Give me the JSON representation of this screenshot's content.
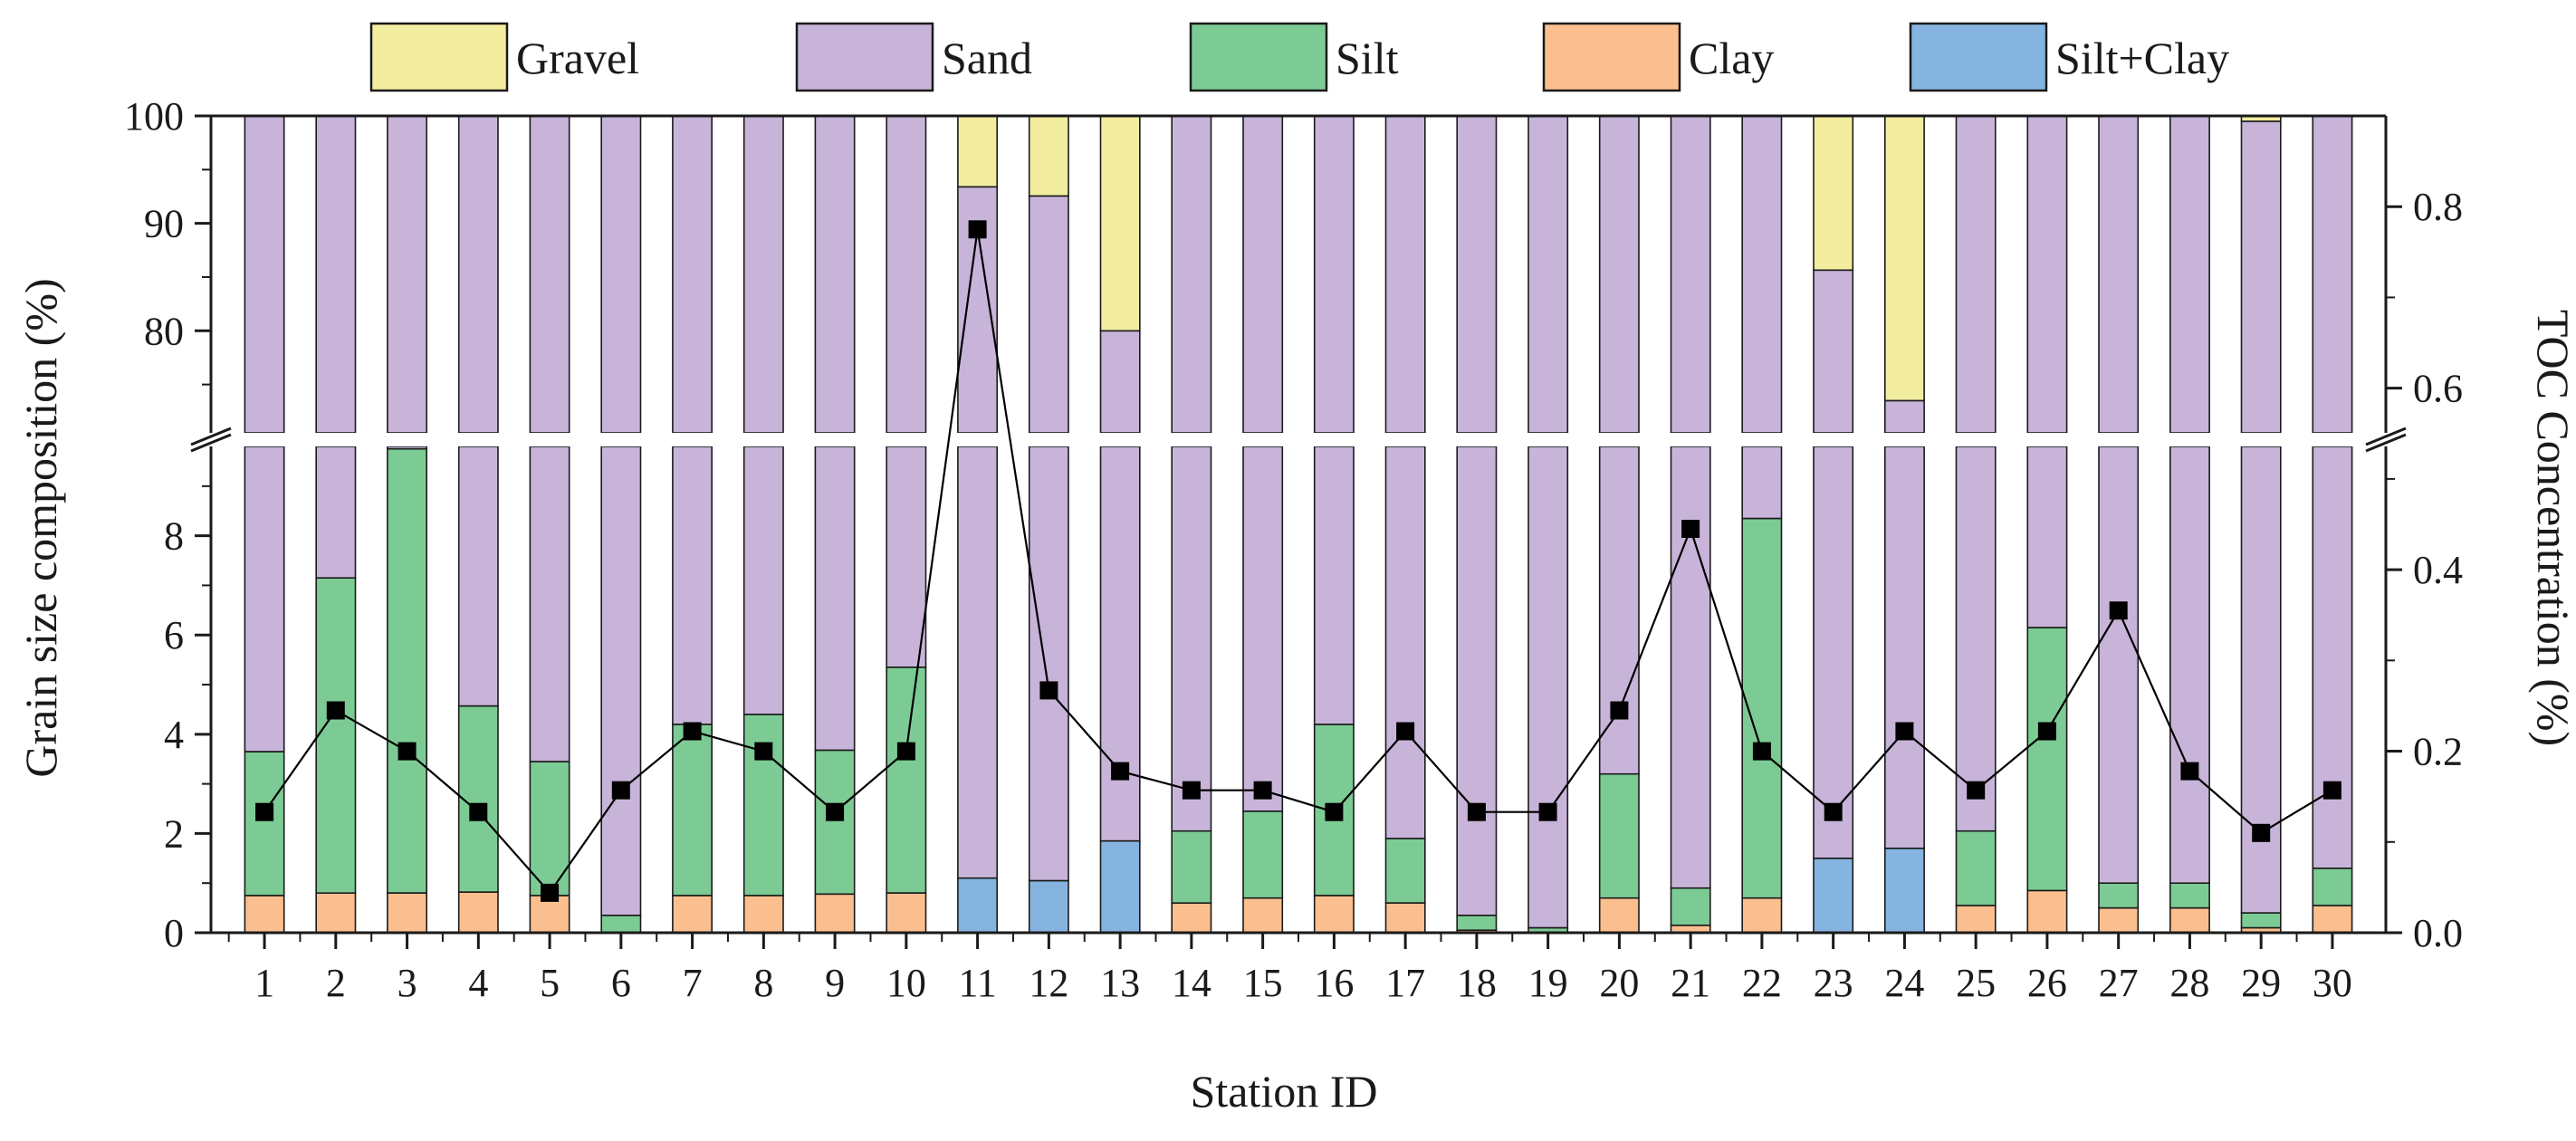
{
  "chart_data": {
    "type": "bar",
    "subtype": "stacked-bar-with-line",
    "xlabel": "Station ID",
    "ylabel": "Grain size composition (%)",
    "y2label": "TOC  Concentration (%)",
    "categories": [
      "1",
      "2",
      "3",
      "4",
      "5",
      "6",
      "7",
      "8",
      "9",
      "10",
      "11",
      "12",
      "13",
      "14",
      "15",
      "16",
      "17",
      "18",
      "19",
      "20",
      "21",
      "22",
      "23",
      "24",
      "25",
      "26",
      "27",
      "28",
      "29",
      "30"
    ],
    "y_axis": {
      "broken": true,
      "lower_range": [
        0,
        9.8
      ],
      "upper_range": [
        70.5,
        100
      ],
      "lower_ticks": [
        0,
        2,
        4,
        6,
        8
      ],
      "upper_ticks": [
        80,
        90,
        100
      ],
      "lower_tick_labels": [
        "0",
        "2",
        "4",
        "6",
        "8"
      ],
      "upper_tick_labels": [
        "80",
        "90",
        "100"
      ]
    },
    "y2_axis": {
      "range": [
        0,
        0.9
      ],
      "ticks": [
        0,
        0.2,
        0.4,
        0.6,
        0.8
      ],
      "tick_labels": [
        "0.0",
        "0.2",
        "0.4",
        "0.6",
        "0.8"
      ]
    },
    "colors": {
      "Gravel": "#f2ed9f",
      "Sand": "#c8b4d9",
      "Silt": "#7dcb94",
      "Clay": "#fbbf8f",
      "Silt+Clay": "#86b4e0",
      "TOC": "#000000",
      "break_gap": "#ffffff"
    },
    "legend": [
      "Gravel",
      "Sand",
      "Silt",
      "Clay",
      "Silt+Clay"
    ],
    "legend_position": "top",
    "series": [
      {
        "name": "Clay",
        "values": [
          0.75,
          0.8,
          0.8,
          0.82,
          0.75,
          0,
          0.75,
          0.75,
          0.78,
          0.8,
          0,
          0,
          0,
          0.6,
          0.7,
          0.75,
          0.6,
          0.05,
          0,
          0.7,
          0.15,
          0.7,
          0,
          0,
          0.55,
          0.85,
          0.5,
          0.5,
          0.1,
          0.55
        ]
      },
      {
        "name": "Silt",
        "values": [
          2.9,
          6.35,
          8.95,
          3.75,
          2.7,
          0.35,
          3.45,
          3.65,
          2.9,
          4.55,
          0,
          0,
          0,
          1.45,
          1.75,
          3.45,
          1.3,
          0.3,
          0.1,
          2.5,
          0.75,
          7.65,
          0,
          0,
          1.5,
          5.3,
          0.5,
          0.5,
          0.3,
          0.75
        ]
      },
      {
        "name": "Silt+Clay",
        "values": [
          0,
          0,
          0,
          0,
          0,
          0,
          0,
          0,
          0,
          0,
          1.1,
          1.05,
          1.85,
          0,
          0,
          0,
          0,
          0,
          0,
          0,
          0,
          0,
          1.5,
          1.7,
          0,
          0,
          0,
          0,
          0,
          0
        ]
      },
      {
        "name": "Sand",
        "values": [
          96.35,
          92.85,
          90.25,
          95.43,
          96.55,
          99.65,
          95.8,
          95.6,
          96.32,
          94.65,
          92.3,
          91.5,
          78.15,
          97.95,
          97.55,
          95.8,
          98.1,
          99.65,
          99.9,
          96.8,
          99.1,
          91.65,
          84.15,
          71.8,
          97.95,
          93.85,
          99.0,
          99.0,
          99.1,
          98.7
        ]
      },
      {
        "name": "Gravel",
        "values": [
          0,
          0,
          0,
          0,
          0,
          0,
          0,
          0,
          0,
          0,
          6.6,
          7.45,
          20.0,
          0,
          0,
          0,
          0,
          0,
          0,
          0,
          0,
          0,
          14.35,
          26.5,
          0,
          0,
          0,
          0,
          0.5,
          0
        ]
      }
    ],
    "toc": {
      "name": "TOC",
      "type": "line",
      "values": [
        0.133,
        0.245,
        0.2,
        0.133,
        0.044,
        0.157,
        0.222,
        0.2,
        0.133,
        0.2,
        0.775,
        0.267,
        0.178,
        0.157,
        0.157,
        0.133,
        0.222,
        0.133,
        0.133,
        0.245,
        0.445,
        0.2,
        0.133,
        0.222,
        0.157,
        0.222,
        0.355,
        0.178,
        0.11,
        0.157
      ]
    }
  }
}
